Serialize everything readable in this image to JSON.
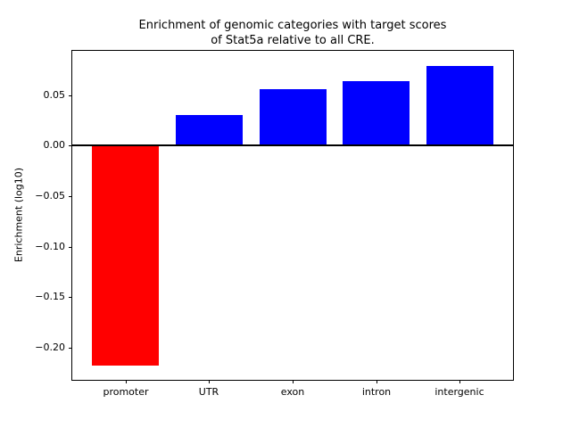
{
  "figure": {
    "background": "#ffffff"
  },
  "chart_data": {
    "type": "bar",
    "title": "Enrichment of genomic categories with target scores\nof Stat5a relative to all CRE.",
    "xlabel": "",
    "ylabel": "Enrichment (log10)",
    "categories": [
      "promoter",
      "UTR",
      "exon",
      "intron",
      "intergenic"
    ],
    "values": [
      -0.218,
      0.03,
      0.056,
      0.064,
      0.079
    ],
    "bar_colors": [
      "#ff0000",
      "#0000ff",
      "#0000ff",
      "#0000ff",
      "#0000ff"
    ],
    "colors": {
      "negative_bar": "#ff0000",
      "positive_bar": "#0000ff",
      "axis": "#000000",
      "background": "#ffffff"
    },
    "ylim": [
      -0.232,
      0.094
    ],
    "xlim": [
      -0.64,
      4.64
    ],
    "bar_width": 0.8,
    "yticks": [
      0.05,
      0,
      -0.05,
      -0.1,
      -0.15,
      -0.2
    ],
    "ytick_labels": [
      "0.05",
      "0.00",
      "−0.05",
      "−0.10",
      "−0.15",
      "−0.20"
    ],
    "zero_line": true,
    "grid": false,
    "legend": null
  }
}
